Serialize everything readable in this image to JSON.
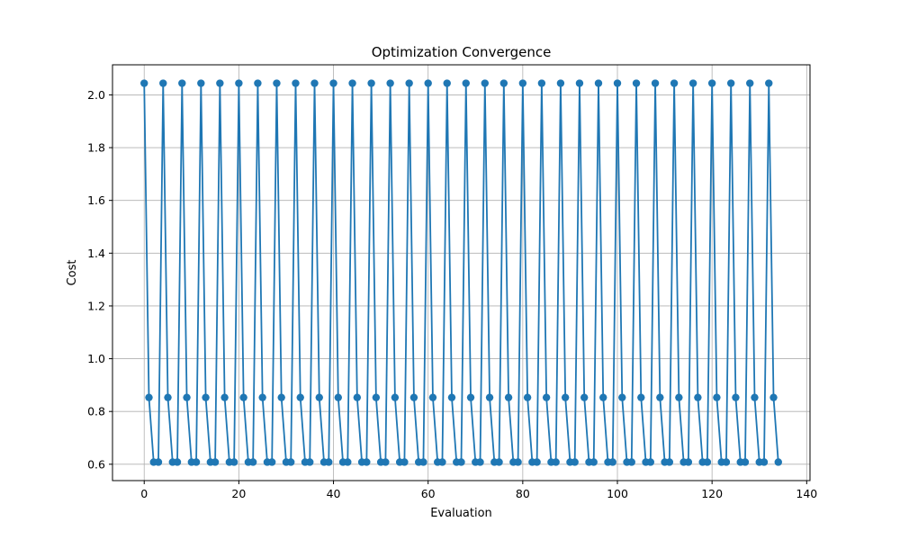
{
  "chart_data": {
    "type": "line",
    "title": "Optimization Convergence",
    "xlabel": "Evaluation",
    "ylabel": "Cost",
    "xlim": [
      -6.7,
      140.7
    ],
    "ylim": [
      0.538,
      2.114
    ],
    "xticks": [
      0,
      20,
      40,
      60,
      80,
      100,
      120,
      140
    ],
    "xtick_labels": [
      "0",
      "20",
      "40",
      "60",
      "80",
      "100",
      "120",
      "140"
    ],
    "yticks": [
      0.6,
      0.8,
      1.0,
      1.2,
      1.4,
      1.6,
      1.8,
      2.0
    ],
    "ytick_labels": [
      "0.6",
      "0.8",
      "1.0",
      "1.2",
      "1.4",
      "1.6",
      "1.8",
      "2.0"
    ],
    "grid": true,
    "marker": "circle",
    "series": [
      {
        "color": "#1f77b4",
        "pattern": [
          2.044,
          0.853,
          0.608,
          0.608
        ],
        "x": [
          0,
          1,
          2,
          3,
          4,
          5,
          6,
          7,
          8,
          9,
          10,
          11,
          12,
          13,
          14,
          15,
          16,
          17,
          18,
          19,
          20,
          21,
          22,
          23,
          24,
          25,
          26,
          27,
          28,
          29,
          30,
          31,
          32,
          33,
          34,
          35,
          36,
          37,
          38,
          39,
          40,
          41,
          42,
          43,
          44,
          45,
          46,
          47,
          48,
          49,
          50,
          51,
          52,
          53,
          54,
          55,
          56,
          57,
          58,
          59,
          60,
          61,
          62,
          63,
          64,
          65,
          66,
          67,
          68,
          69,
          70,
          71,
          72,
          73,
          74,
          75,
          76,
          77,
          78,
          79,
          80,
          81,
          82,
          83,
          84,
          85,
          86,
          87,
          88,
          89,
          90,
          91,
          92,
          93,
          94,
          95,
          96,
          97,
          98,
          99,
          100,
          101,
          102,
          103,
          104,
          105,
          106,
          107,
          108,
          109,
          110,
          111,
          112,
          113,
          114,
          115,
          116,
          117,
          118,
          119,
          120,
          121,
          122,
          123,
          124,
          125,
          126,
          127,
          128,
          129,
          130,
          131,
          132,
          133,
          134
        ]
      }
    ]
  }
}
